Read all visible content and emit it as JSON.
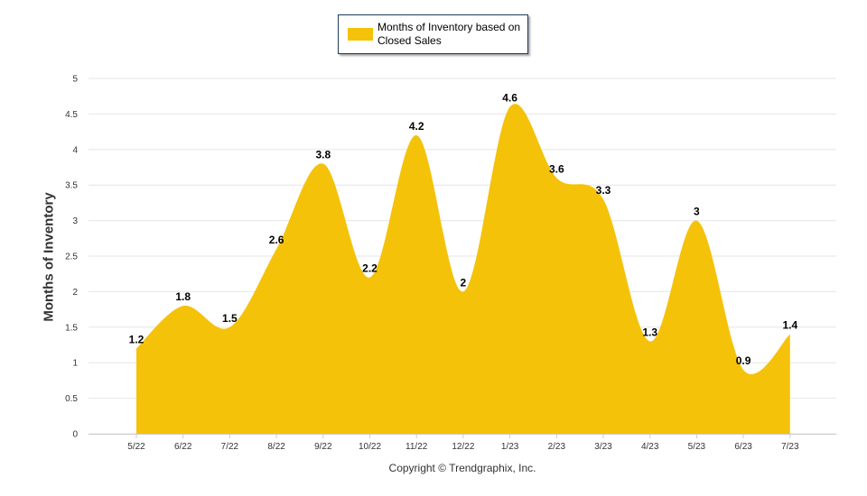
{
  "legend": {
    "label": "Months of Inventory based on Closed Sales"
  },
  "footer": {
    "copyright": "Copyright © Trendgraphix, Inc."
  },
  "chart_data": {
    "type": "area",
    "ylabel": "Months of Inventory",
    "xlabel": "",
    "ylim": [
      0,
      5
    ],
    "yticks": [
      "0",
      "0.5",
      "1",
      "1.5",
      "2",
      "2.5",
      "3",
      "3.5",
      "4",
      "4.5",
      "5"
    ],
    "categories": [
      "5/22",
      "6/22",
      "7/22",
      "8/22",
      "9/22",
      "10/22",
      "11/22",
      "12/22",
      "1/23",
      "2/23",
      "3/23",
      "4/23",
      "5/23",
      "6/23",
      "7/23"
    ],
    "series": [
      {
        "name": "Months of Inventory based on Closed Sales",
        "values": [
          1.2,
          1.8,
          1.5,
          2.6,
          3.8,
          2.2,
          4.2,
          2,
          4.6,
          3.6,
          3.3,
          1.3,
          3,
          0.9,
          1.4
        ],
        "labels": [
          "1.2",
          "1.8",
          "1.5",
          "2.6",
          "3.8",
          "2.2",
          "4.2",
          "2",
          "4.6",
          "3.6",
          "3.3",
          "1.3",
          "3",
          "0.9",
          "1.4"
        ],
        "color": "#F5C20A"
      }
    ],
    "grid": true,
    "legend_position": "top-center"
  }
}
